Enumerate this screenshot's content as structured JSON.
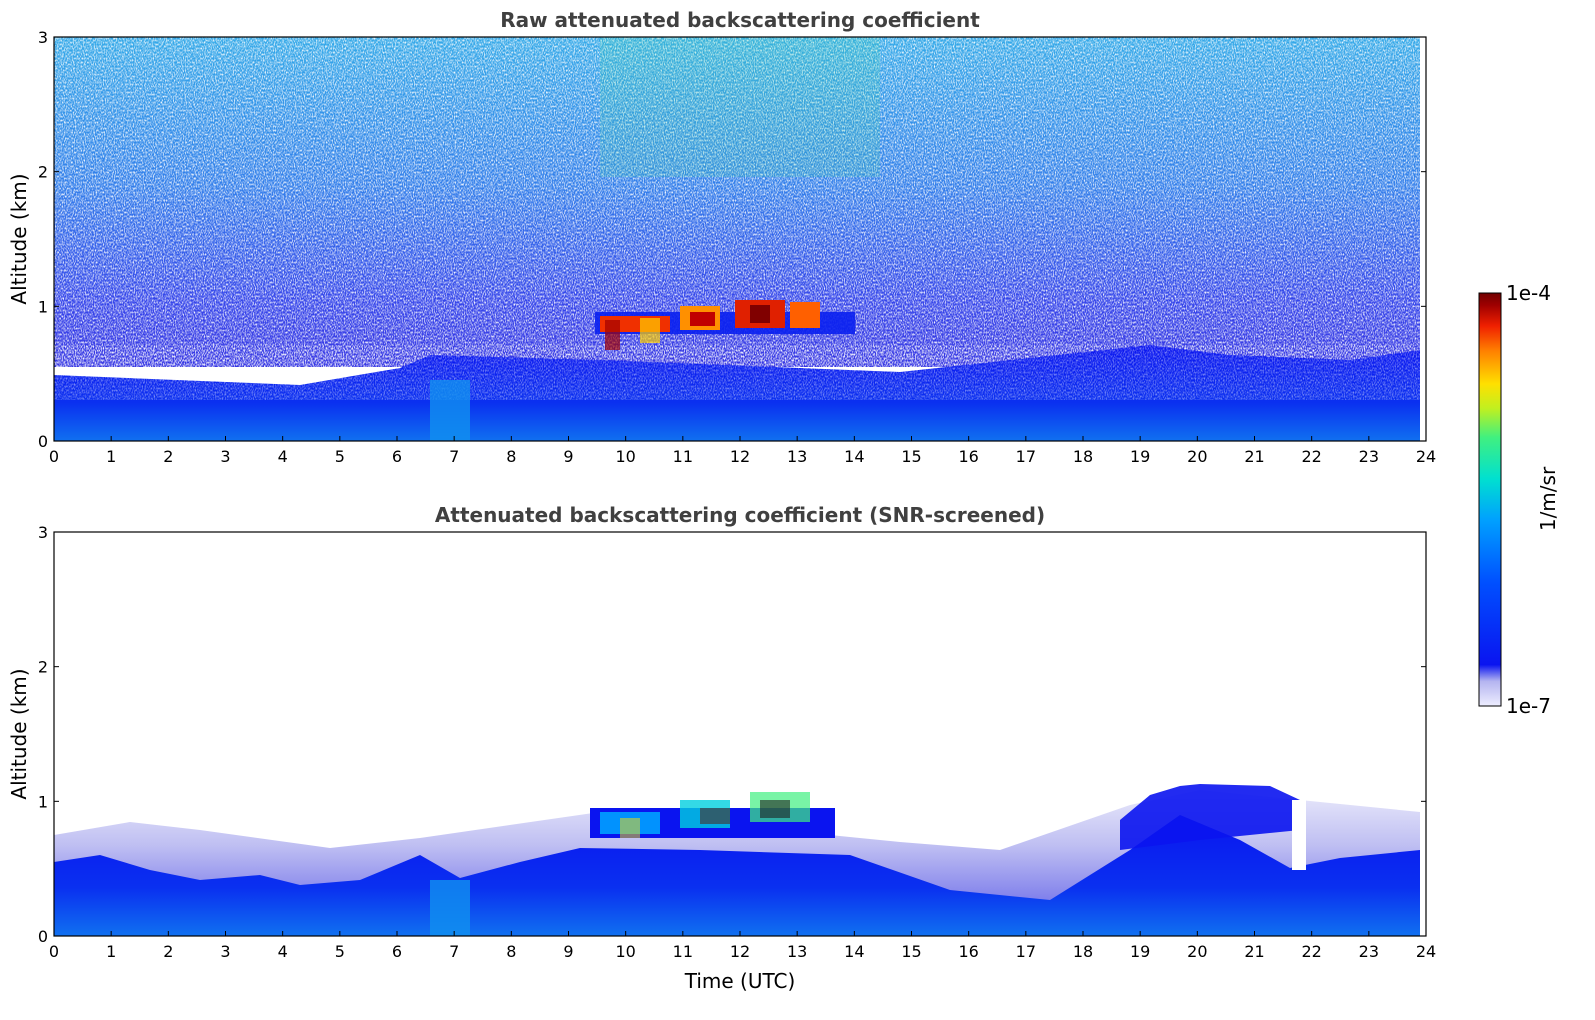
{
  "chart_data": [
    {
      "type": "heatmap",
      "title": "Raw attenuated backscattering coefficient",
      "xlabel": "",
      "ylabel": "Altitude (km)",
      "xlim": [
        0,
        24
      ],
      "ylim": [
        0,
        3
      ],
      "xticks": [
        "0",
        "1",
        "2",
        "3",
        "4",
        "5",
        "6",
        "7",
        "8",
        "9",
        "10",
        "11",
        "12",
        "13",
        "14",
        "15",
        "16",
        "17",
        "18",
        "19",
        "20",
        "21",
        "22",
        "23",
        "24"
      ],
      "yticks": [
        "0",
        "1",
        "2",
        "3"
      ],
      "features": [
        {
          "name": "boundary-layer",
          "x_range": [
            0,
            24
          ],
          "top_km": 0.45
        },
        {
          "name": "cloud-layer",
          "x_range": [
            9.4,
            13.6
          ],
          "altitude_km": [
            0.8,
            1.05
          ]
        },
        {
          "name": "noise",
          "x_range": [
            0,
            24
          ],
          "altitude_km": [
            0.5,
            3.0
          ]
        }
      ]
    },
    {
      "type": "heatmap",
      "title": "Attenuated backscattering coefficient (SNR-screened)",
      "xlabel": "Time (UTC)",
      "ylabel": "Altitude (km)",
      "xlim": [
        0,
        24
      ],
      "ylim": [
        0,
        3
      ],
      "xticks": [
        "0",
        "1",
        "2",
        "3",
        "4",
        "5",
        "6",
        "7",
        "8",
        "9",
        "10",
        "11",
        "12",
        "13",
        "14",
        "15",
        "16",
        "17",
        "18",
        "19",
        "20",
        "21",
        "22",
        "23",
        "24"
      ],
      "yticks": [
        "0",
        "1",
        "2",
        "3"
      ],
      "features": [
        {
          "name": "boundary-layer",
          "x_range": [
            0,
            24
          ],
          "top_km": 0.6
        },
        {
          "name": "cloud-layer",
          "x_range": [
            9.4,
            13.6
          ],
          "altitude_km": [
            0.8,
            1.05
          ]
        },
        {
          "name": "elevated-aerosol",
          "x_range": [
            19.5,
            21.5
          ],
          "altitude_km": [
            0.8,
            1.15
          ]
        }
      ]
    }
  ],
  "colorbar": {
    "label": "1/m/sr",
    "max_label": "1e-4",
    "min_label": "1e-7",
    "range": [
      1e-07,
      0.0001
    ],
    "colors": [
      "#eeeeff",
      "#b4b4f0",
      "#0a14f0",
      "#0050ff",
      "#00a0ff",
      "#00e0d0",
      "#40f080",
      "#c0f020",
      "#ffe000",
      "#ff8000",
      "#f02000",
      "#a00000",
      "#700000"
    ]
  }
}
